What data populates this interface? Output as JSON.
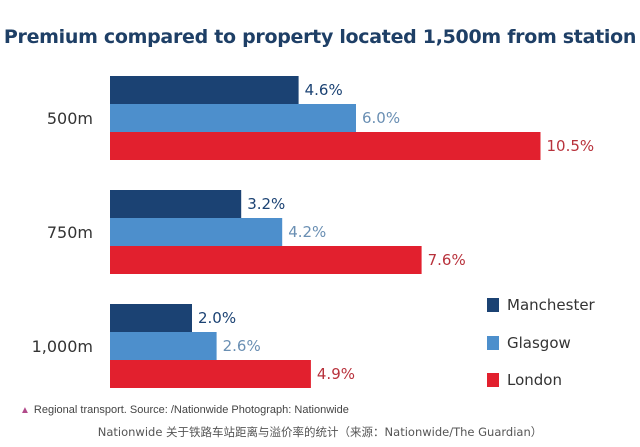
{
  "chart_data": {
    "type": "bar",
    "orientation": "horizontal",
    "title": "Premium compared to property located 1,500m from station",
    "categories": [
      "500m",
      "750m",
      "1,000m"
    ],
    "series": [
      {
        "name": "Manchester",
        "color": "#1b4273",
        "values": [
          4.6,
          3.2,
          2.0
        ],
        "labels": [
          "4.6%",
          "3.2%",
          "2.0%"
        ]
      },
      {
        "name": "Glasgow",
        "color": "#4d8fcc",
        "values": [
          6.0,
          4.2,
          2.6
        ],
        "labels": [
          "6.0%",
          "4.2%",
          "2.6%"
        ]
      },
      {
        "name": "London",
        "color": "#e2202e",
        "values": [
          10.5,
          7.6,
          4.9
        ],
        "labels": [
          "10.5%",
          "7.6%",
          "4.9%"
        ]
      }
    ],
    "xlim": [
      0,
      12
    ],
    "legend_position": "bottom-right",
    "grid": false
  },
  "caption": {
    "icon": "triangle-icon",
    "text": "Regional transport. Source: /Nationwide Photograph: Nationwide"
  },
  "footnote": "Nationwide 关于铁路车站距离与溢价率的统计（来源：Nationwide/The Guardian）"
}
